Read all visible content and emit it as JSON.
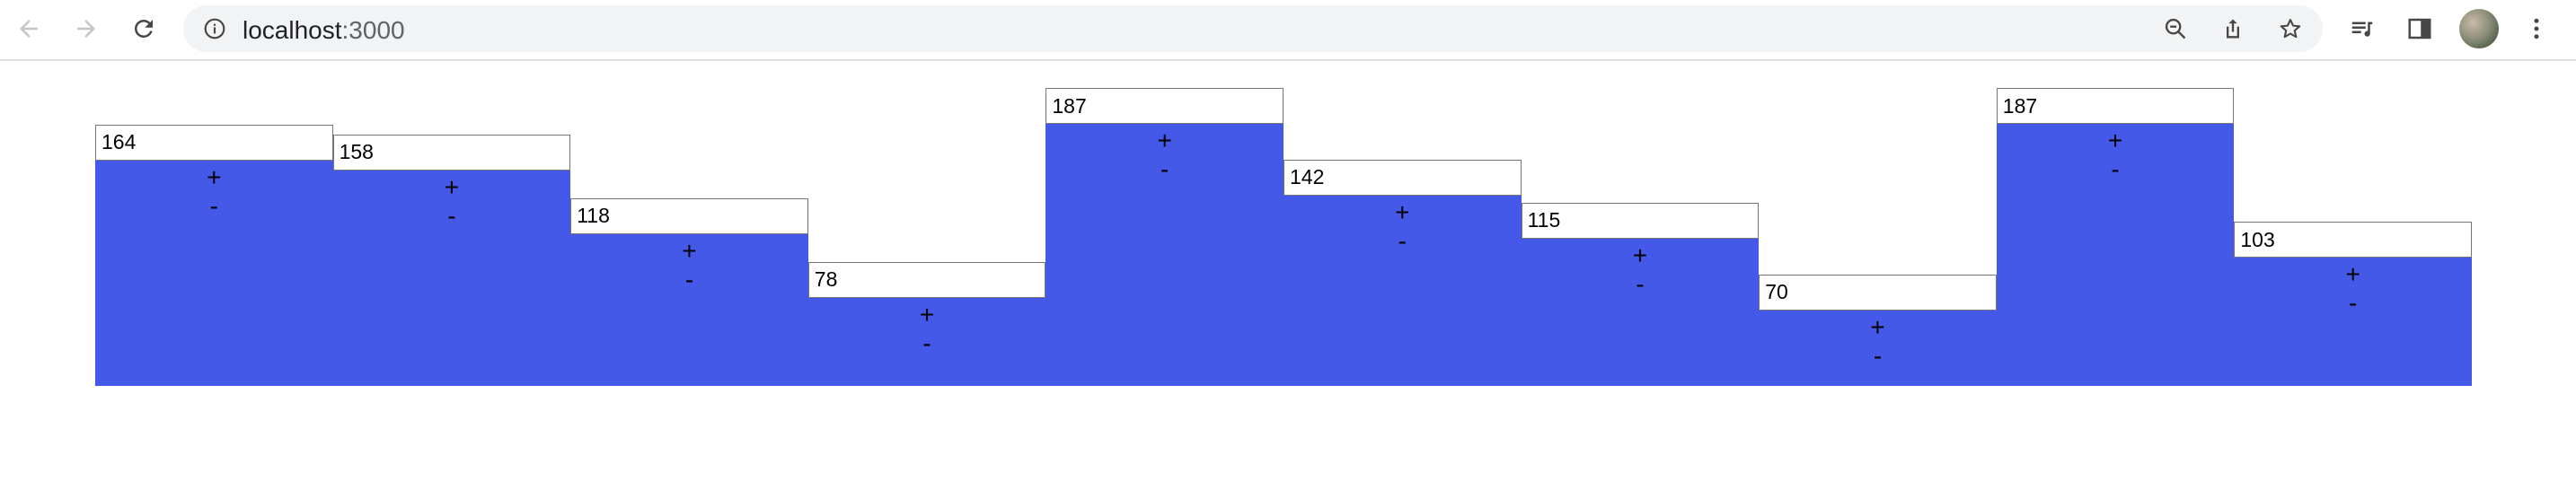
{
  "browser": {
    "url_host": "localhost",
    "url_port": ":3000"
  },
  "chart_data": {
    "type": "bar",
    "values": [
      164,
      158,
      118,
      78,
      187,
      142,
      115,
      70,
      187,
      103
    ],
    "increment_label": "+",
    "decrement_label": "-"
  },
  "colors": {
    "bar_fill": "#4459e8",
    "chrome_background": "#f1f3f4"
  }
}
